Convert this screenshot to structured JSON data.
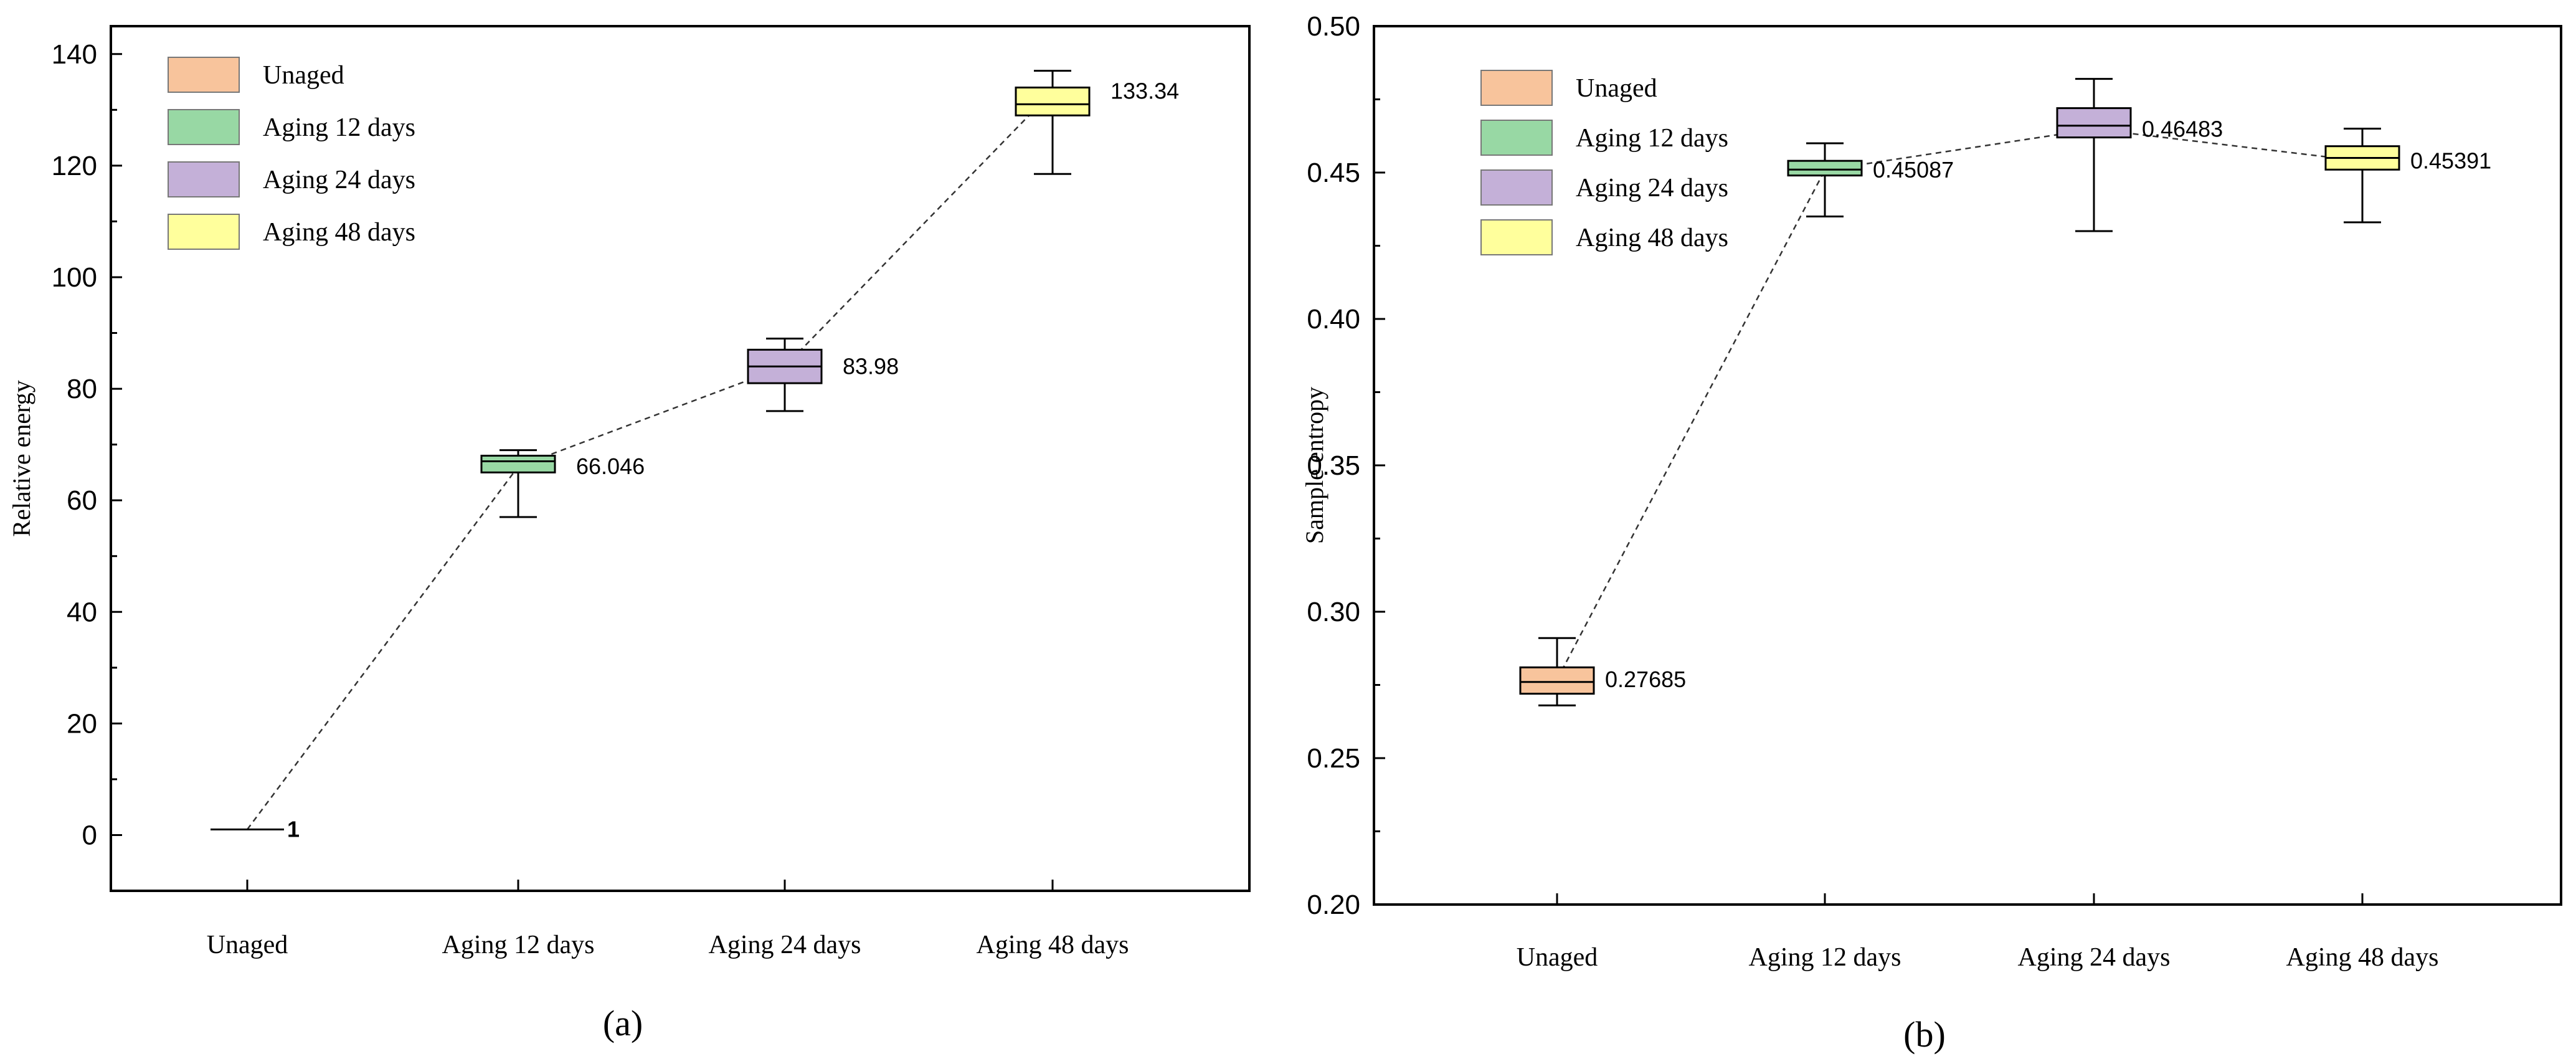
{
  "chart_data": [
    {
      "panel_label": "(a)",
      "type": "box",
      "ylabel": "Relative energy",
      "ylim": [
        -10,
        145
      ],
      "yticks": [
        0,
        20,
        40,
        60,
        80,
        100,
        120,
        140
      ],
      "ytick_labels": [
        "0",
        "20",
        "40",
        "60",
        "80",
        "100",
        "120",
        "140"
      ],
      "categories": [
        "Unaged",
        "Aging 12 days",
        "Aging 24 days",
        "Aging 48 days"
      ],
      "legend": [
        "Unaged",
        "Aging 12 days",
        "Aging 24 days",
        "Aging 48 days"
      ],
      "legend_position": "top-left",
      "colors": [
        "#f8c49c",
        "#98d8a4",
        "#c4b0d8",
        "#ffff9c"
      ],
      "series": [
        {
          "category": "Unaged",
          "whisker_low": 1,
          "q1": 1,
          "median": 1,
          "q3": 1,
          "whisker_high": 1,
          "mean": 1,
          "label": "1"
        },
        {
          "category": "Aging 12 days",
          "whisker_low": 57,
          "q1": 65,
          "median": 67,
          "q3": 68,
          "whisker_high": 69,
          "mean": 66.046,
          "label": "66.046"
        },
        {
          "category": "Aging 24 days",
          "whisker_low": 76,
          "q1": 81,
          "median": 84,
          "q3": 87,
          "whisker_high": 89,
          "mean": 83.98,
          "label": "83.98"
        },
        {
          "category": "Aging 48 days",
          "whisker_low": 118.5,
          "q1": 129,
          "median": 131,
          "q3": 134,
          "whisker_high": 137,
          "mean": 133.34,
          "label": "133.34"
        }
      ]
    },
    {
      "panel_label": "(b)",
      "type": "box",
      "ylabel": "Sample entropy",
      "ylim": [
        0.2,
        0.5
      ],
      "yticks": [
        0.2,
        0.25,
        0.3,
        0.35,
        0.4,
        0.45,
        0.5
      ],
      "ytick_labels": [
        "0.20",
        "0.25",
        "0.30",
        "0.35",
        "0.40",
        "0.45",
        "0.50"
      ],
      "categories": [
        "Unaged",
        "Aging 12 days",
        "Aging 24 days",
        "Aging 48 days"
      ],
      "legend": [
        "Unaged",
        "Aging 12 days",
        "Aging 24 days",
        "Aging 48 days"
      ],
      "legend_position": "top-left",
      "colors": [
        "#f8c49c",
        "#98d8a4",
        "#c4b0d8",
        "#ffff9c"
      ],
      "series": [
        {
          "category": "Unaged",
          "whisker_low": 0.268,
          "q1": 0.272,
          "median": 0.276,
          "q3": 0.281,
          "whisker_high": 0.291,
          "mean": 0.27685,
          "label": "0.27685"
        },
        {
          "category": "Aging 12 days",
          "whisker_low": 0.435,
          "q1": 0.449,
          "median": 0.451,
          "q3": 0.454,
          "whisker_high": 0.46,
          "mean": 0.45087,
          "label": "0.45087"
        },
        {
          "category": "Aging 24 days",
          "whisker_low": 0.43,
          "q1": 0.462,
          "median": 0.466,
          "q3": 0.472,
          "whisker_high": 0.482,
          "mean": 0.46483,
          "label": "0.46483"
        },
        {
          "category": "Aging 48 days",
          "whisker_low": 0.433,
          "q1": 0.451,
          "median": 0.455,
          "q3": 0.459,
          "whisker_high": 0.465,
          "mean": 0.45391,
          "label": "0.45391"
        }
      ]
    }
  ]
}
